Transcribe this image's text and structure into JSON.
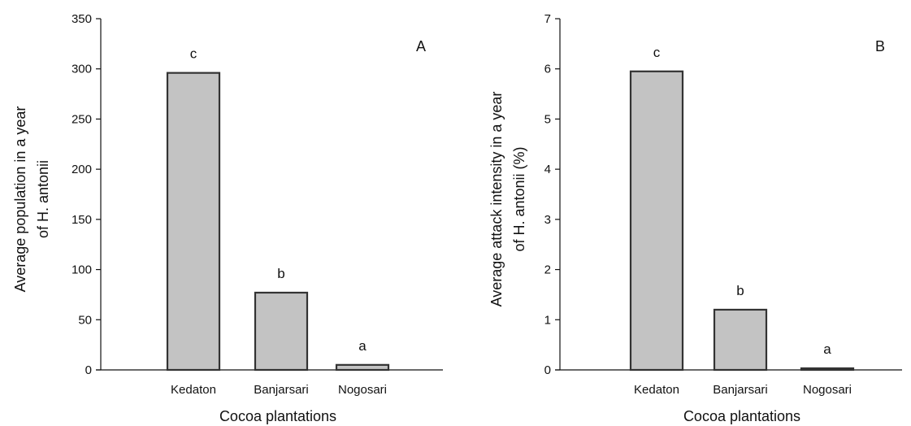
{
  "colors": {
    "bar_fill": "#c3c3c3",
    "bar_stroke": "#333333",
    "axis": "#111111",
    "background": "#ffffff"
  },
  "chart_data": [
    {
      "type": "bar",
      "panel_label": "A",
      "categories": [
        "Kedaton",
        "Banjarsari",
        "Nogosari"
      ],
      "values": [
        296,
        77,
        5
      ],
      "significance_letters": [
        "c",
        "b",
        "a"
      ],
      "xlabel": "Cocoa plantations",
      "ylabel": [
        "Average population in a year",
        "of H. antonii"
      ],
      "ylim": [
        0,
        350
      ],
      "yticks": [
        0,
        50,
        100,
        150,
        200,
        250,
        300,
        350
      ],
      "grid": false,
      "legend": "none"
    },
    {
      "type": "bar",
      "panel_label": "B",
      "categories": [
        "Kedaton",
        "Banjarsari",
        "Nogosari"
      ],
      "values": [
        5.95,
        1.2,
        0.03
      ],
      "significance_letters": [
        "c",
        "b",
        "a"
      ],
      "xlabel": "Cocoa plantations",
      "ylabel": [
        "Average attack intensity in a year",
        "of H. antonii (%)"
      ],
      "ylim": [
        0,
        7
      ],
      "yticks": [
        0,
        1,
        2,
        3,
        4,
        5,
        6,
        7
      ],
      "grid": false,
      "legend": "none"
    }
  ]
}
